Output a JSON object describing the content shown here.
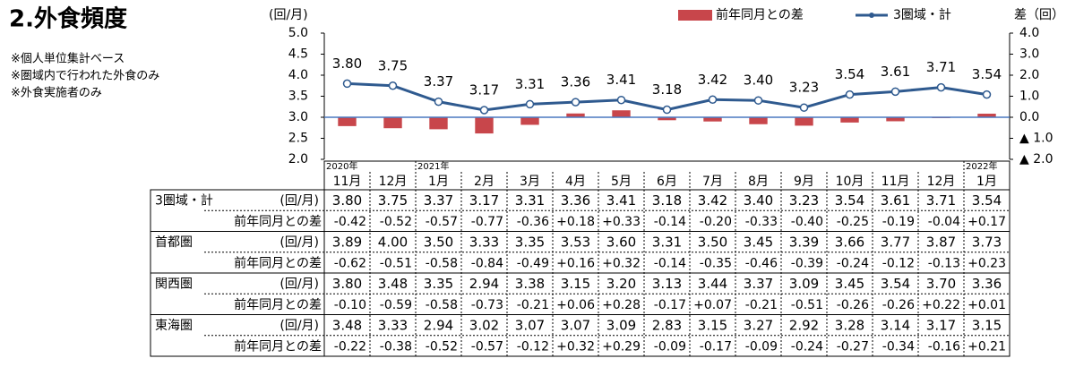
{
  "title": "2.外食頻度",
  "notes": [
    "※個人単位集計ベース",
    "※圏域内で行われた外食のみ",
    "※外食実施者のみ"
  ],
  "chart_data": {
    "type": "bar_line",
    "y_label": "(回/月)",
    "y2_label": "差（回）",
    "categories": [
      "11月",
      "12月",
      "1月",
      "2月",
      "3月",
      "4月",
      "5月",
      "6月",
      "7月",
      "8月",
      "9月",
      "10月",
      "11月",
      "12月",
      "1月"
    ],
    "years": [
      "2020年",
      null,
      "2021年",
      null,
      null,
      null,
      null,
      null,
      null,
      null,
      null,
      null,
      null,
      null,
      "2022年"
    ],
    "ylim": [
      2,
      5
    ],
    "yticks": [
      {
        "value": 2,
        "label": "2.0"
      },
      {
        "value": 2.5,
        "label": "2.5"
      },
      {
        "value": 3,
        "label": "3.0"
      },
      {
        "value": 3.5,
        "label": "3.5"
      },
      {
        "value": 4,
        "label": "4.0"
      },
      {
        "value": 4.5,
        "label": "4.5"
      },
      {
        "value": 5,
        "label": "5.0"
      }
    ],
    "y2lim": [
      -2,
      4
    ],
    "y2ticks": [
      {
        "value": -2,
        "label": "▲ 2.0"
      },
      {
        "value": -1,
        "label": "▲ 1.0"
      },
      {
        "value": 0,
        "label": "0.0"
      },
      {
        "value": 1,
        "label": "1.0"
      },
      {
        "value": 2,
        "label": "2.0"
      },
      {
        "value": 3,
        "label": "3.0"
      },
      {
        "value": 4,
        "label": "4.0"
      }
    ],
    "series": [
      {
        "name": "前年同月との差",
        "type": "bar",
        "axis": "y2",
        "color": "#c8464b",
        "values": [
          -0.42,
          -0.52,
          -0.57,
          -0.77,
          -0.36,
          0.18,
          0.33,
          -0.14,
          -0.2,
          -0.33,
          -0.4,
          -0.25,
          -0.19,
          -0.04,
          0.17
        ]
      },
      {
        "name": "3圏域・計",
        "type": "line",
        "color": "#2f5a8f",
        "values": [
          3.8,
          3.75,
          3.37,
          3.17,
          3.31,
          3.36,
          3.41,
          3.18,
          3.42,
          3.4,
          3.23,
          3.54,
          3.61,
          3.71,
          3.54
        ],
        "value_labels": [
          "3.80",
          "3.75",
          "3.37",
          "3.17",
          "3.31",
          "3.36",
          "3.41",
          "3.18",
          "3.42",
          "3.40",
          "3.23",
          "3.54",
          "3.61",
          "3.71",
          "3.54"
        ]
      }
    ]
  },
  "table": {
    "diff_label": "前年同月との差",
    "rows": [
      {
        "region": "3圏域・計",
        "unit": "(回/月)",
        "values": [
          "3.80",
          "3.75",
          "3.37",
          "3.17",
          "3.31",
          "3.36",
          "3.41",
          "3.18",
          "3.42",
          "3.40",
          "3.23",
          "3.54",
          "3.61",
          "3.71",
          "3.54"
        ],
        "diffs": [
          "-0.42",
          "-0.52",
          "-0.57",
          "-0.77",
          "-0.36",
          "+0.18",
          "+0.33",
          "-0.14",
          "-0.20",
          "-0.33",
          "-0.40",
          "-0.25",
          "-0.19",
          "-0.04",
          "+0.17"
        ]
      },
      {
        "region": "首都圏",
        "unit": "(回/月)",
        "values": [
          "3.89",
          "4.00",
          "3.50",
          "3.33",
          "3.35",
          "3.53",
          "3.60",
          "3.31",
          "3.50",
          "3.45",
          "3.39",
          "3.66",
          "3.77",
          "3.87",
          "3.73"
        ],
        "diffs": [
          "-0.62",
          "-0.51",
          "-0.58",
          "-0.84",
          "-0.49",
          "+0.16",
          "+0.32",
          "-0.14",
          "-0.35",
          "-0.46",
          "-0.39",
          "-0.24",
          "-0.12",
          "-0.13",
          "+0.23"
        ]
      },
      {
        "region": "関西圏",
        "unit": "(回/月)",
        "values": [
          "3.80",
          "3.48",
          "3.35",
          "2.94",
          "3.38",
          "3.15",
          "3.20",
          "3.13",
          "3.44",
          "3.37",
          "3.09",
          "3.45",
          "3.54",
          "3.70",
          "3.36"
        ],
        "diffs": [
          "-0.10",
          "-0.59",
          "-0.58",
          "-0.73",
          "-0.21",
          "+0.06",
          "+0.28",
          "-0.17",
          "+0.07",
          "-0.21",
          "-0.51",
          "-0.26",
          "-0.26",
          "+0.22",
          "+0.01"
        ]
      },
      {
        "region": "東海圏",
        "unit": "(回/月)",
        "values": [
          "3.48",
          "3.33",
          "2.94",
          "3.02",
          "3.07",
          "3.07",
          "3.09",
          "2.83",
          "3.15",
          "3.27",
          "2.92",
          "3.28",
          "3.14",
          "3.17",
          "3.15"
        ],
        "diffs": [
          "-0.22",
          "-0.38",
          "-0.52",
          "-0.57",
          "-0.12",
          "+0.32",
          "+0.29",
          "-0.09",
          "-0.17",
          "-0.09",
          "-0.24",
          "-0.27",
          "-0.34",
          "-0.16",
          "+0.21"
        ]
      }
    ]
  }
}
